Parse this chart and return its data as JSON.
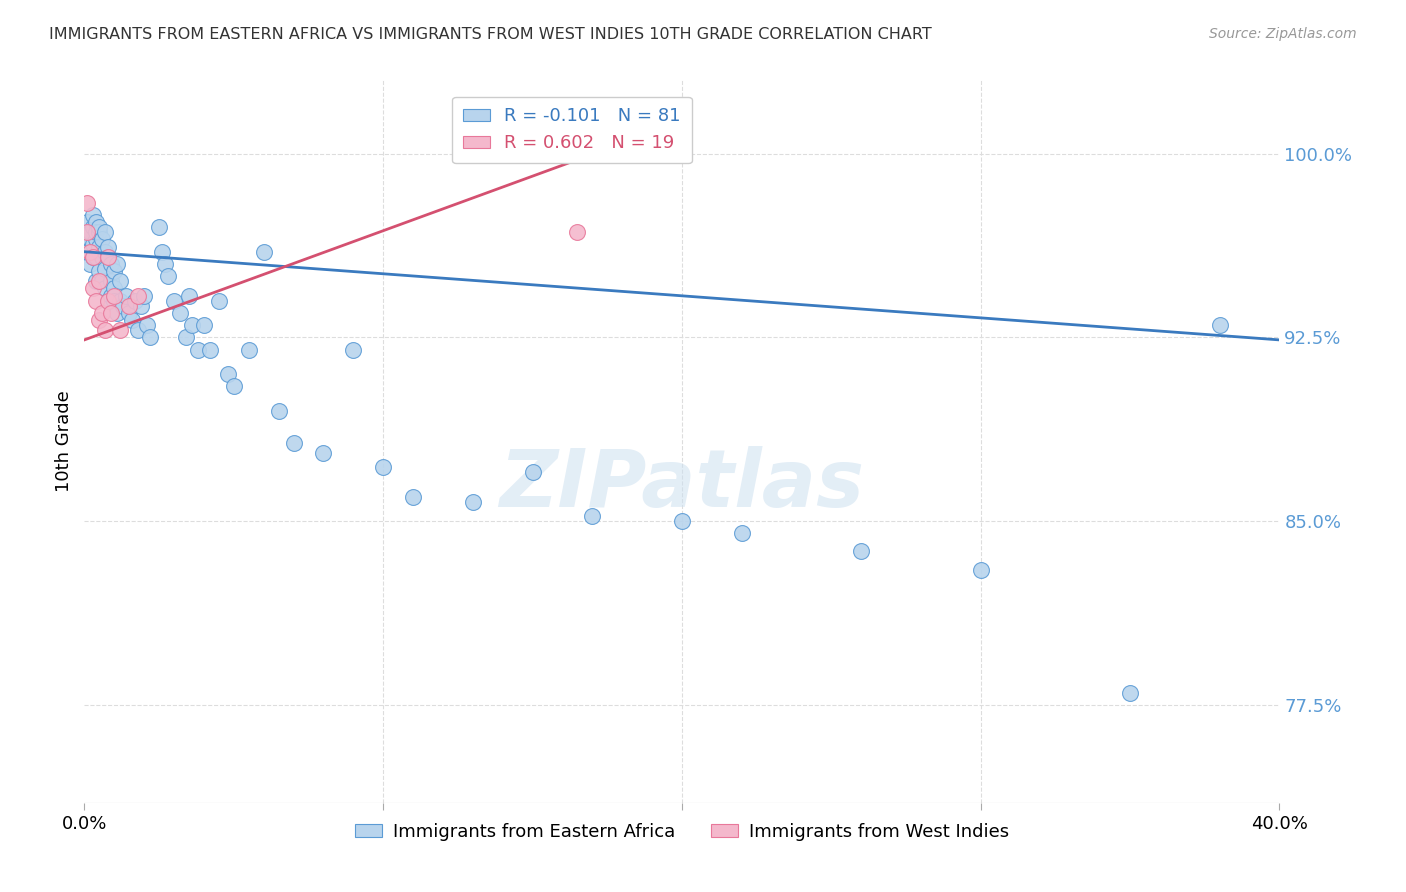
{
  "title": "IMMIGRANTS FROM EASTERN AFRICA VS IMMIGRANTS FROM WEST INDIES 10TH GRADE CORRELATION CHART",
  "source": "Source: ZipAtlas.com",
  "ylabel": "10th Grade",
  "yticks": [
    0.775,
    0.85,
    0.925,
    1.0
  ],
  "ytick_labels": [
    "77.5%",
    "85.0%",
    "92.5%",
    "100.0%"
  ],
  "xlim": [
    0.0,
    0.4
  ],
  "ylim": [
    0.735,
    1.03
  ],
  "watermark": "ZIPatlas",
  "legend_r_blue": "-0.101",
  "legend_n_blue": "81",
  "legend_r_pink": "0.602",
  "legend_n_pink": "19",
  "blue_fill": "#b8d4ed",
  "pink_fill": "#f4b8cc",
  "blue_edge": "#5b9bd5",
  "pink_edge": "#e8789a",
  "blue_line_color": "#3a7abf",
  "pink_line_color": "#d45070",
  "title_color": "#333333",
  "ytick_color": "#5b9bd5",
  "blue_line_x0": 0.0,
  "blue_line_x1": 0.4,
  "blue_line_y0": 0.96,
  "blue_line_y1": 0.924,
  "pink_line_x0": 0.0,
  "pink_line_x1": 0.175,
  "pink_line_y0": 0.924,
  "pink_line_y1": 1.002,
  "blue_scatter_x": [
    0.001,
    0.001,
    0.002,
    0.002,
    0.002,
    0.003,
    0.003,
    0.003,
    0.003,
    0.004,
    0.004,
    0.004,
    0.004,
    0.004,
    0.005,
    0.005,
    0.005,
    0.005,
    0.005,
    0.006,
    0.006,
    0.006,
    0.007,
    0.007,
    0.007,
    0.007,
    0.008,
    0.008,
    0.008,
    0.009,
    0.009,
    0.009,
    0.01,
    0.01,
    0.01,
    0.011,
    0.011,
    0.012,
    0.012,
    0.013,
    0.014,
    0.015,
    0.016,
    0.017,
    0.018,
    0.019,
    0.02,
    0.021,
    0.022,
    0.025,
    0.026,
    0.027,
    0.028,
    0.03,
    0.032,
    0.034,
    0.035,
    0.036,
    0.038,
    0.04,
    0.042,
    0.045,
    0.048,
    0.05,
    0.055,
    0.06,
    0.065,
    0.07,
    0.08,
    0.09,
    0.1,
    0.11,
    0.13,
    0.15,
    0.17,
    0.2,
    0.22,
    0.26,
    0.3,
    0.35,
    0.38
  ],
  "blue_scatter_y": [
    0.96,
    0.972,
    0.965,
    0.955,
    0.968,
    0.97,
    0.963,
    0.975,
    0.958,
    0.972,
    0.965,
    0.958,
    0.968,
    0.948,
    0.968,
    0.96,
    0.952,
    0.962,
    0.97,
    0.958,
    0.965,
    0.948,
    0.96,
    0.953,
    0.968,
    0.945,
    0.958,
    0.962,
    0.94,
    0.955,
    0.948,
    0.942,
    0.952,
    0.945,
    0.94,
    0.955,
    0.935,
    0.948,
    0.94,
    0.938,
    0.942,
    0.935,
    0.932,
    0.94,
    0.928,
    0.938,
    0.942,
    0.93,
    0.925,
    0.97,
    0.96,
    0.955,
    0.95,
    0.94,
    0.935,
    0.925,
    0.942,
    0.93,
    0.92,
    0.93,
    0.92,
    0.94,
    0.91,
    0.905,
    0.92,
    0.96,
    0.895,
    0.882,
    0.878,
    0.92,
    0.872,
    0.86,
    0.858,
    0.87,
    0.852,
    0.85,
    0.845,
    0.838,
    0.83,
    0.78,
    0.93
  ],
  "pink_scatter_x": [
    0.001,
    0.001,
    0.002,
    0.003,
    0.003,
    0.004,
    0.005,
    0.005,
    0.006,
    0.007,
    0.008,
    0.008,
    0.009,
    0.01,
    0.012,
    0.015,
    0.018,
    0.15,
    0.165
  ],
  "pink_scatter_y": [
    0.98,
    0.968,
    0.96,
    0.958,
    0.945,
    0.94,
    0.932,
    0.948,
    0.935,
    0.928,
    0.94,
    0.958,
    0.935,
    0.942,
    0.928,
    0.938,
    0.942,
    1.002,
    0.968
  ]
}
